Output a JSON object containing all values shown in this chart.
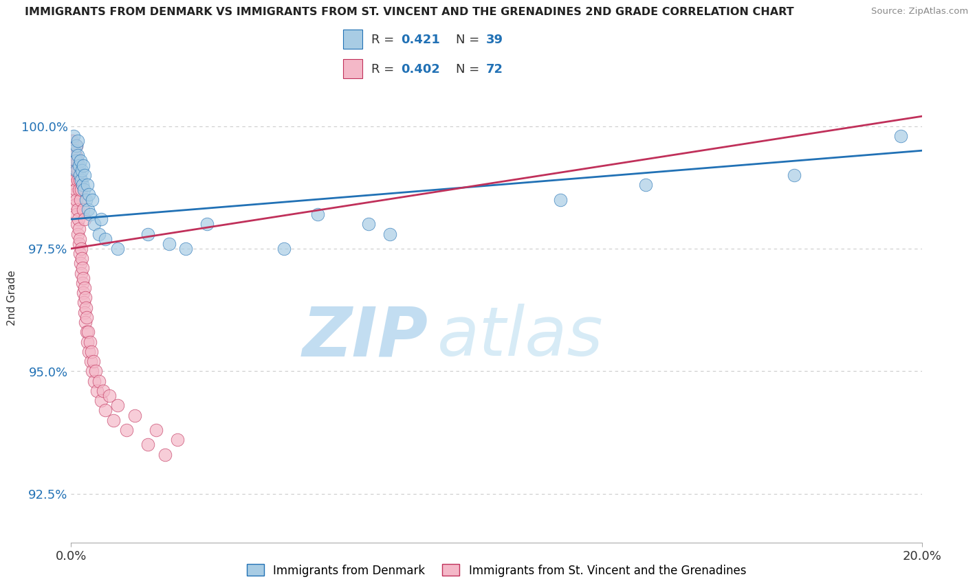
{
  "title": "IMMIGRANTS FROM DENMARK VS IMMIGRANTS FROM ST. VINCENT AND THE GRENADINES 2ND GRADE CORRELATION CHART",
  "source": "Source: ZipAtlas.com",
  "ylabel": "2nd Grade",
  "xlim": [
    0.0,
    20.0
  ],
  "ylim": [
    91.5,
    101.5
  ],
  "yticks": [
    92.5,
    95.0,
    97.5,
    100.0
  ],
  "ytick_labels": [
    "92.5%",
    "95.0%",
    "97.5%",
    "100.0%"
  ],
  "xticks": [
    0.0,
    20.0
  ],
  "xtick_labels": [
    "0.0%",
    "20.0%"
  ],
  "color_denmark": "#a8cce4",
  "color_stvincent": "#f4b8c8",
  "color_line_denmark": "#2171b5",
  "color_line_stvincent": "#c0305a",
  "label_denmark": "Immigrants from Denmark",
  "label_stvincent": "Immigrants from St. Vincent and the Grenadines",
  "watermark_zip": "ZIP",
  "watermark_atlas": "atlas",
  "grid_color": "#cccccc",
  "background_color": "#ffffff",
  "denmark_x": [
    0.05,
    0.08,
    0.1,
    0.12,
    0.13,
    0.15,
    0.16,
    0.18,
    0.2,
    0.22,
    0.24,
    0.25,
    0.27,
    0.28,
    0.3,
    0.32,
    0.35,
    0.38,
    0.4,
    0.42,
    0.45,
    0.5,
    0.55,
    0.65,
    0.7,
    0.8,
    1.1,
    1.8,
    2.3,
    2.7,
    3.2,
    5.0,
    5.8,
    7.0,
    7.5,
    11.5,
    13.5,
    17.0,
    19.5
  ],
  "denmark_y": [
    99.8,
    99.5,
    99.3,
    99.6,
    99.1,
    99.4,
    99.7,
    99.2,
    99.0,
    99.3,
    98.9,
    99.1,
    98.8,
    99.2,
    98.7,
    99.0,
    98.5,
    98.8,
    98.3,
    98.6,
    98.2,
    98.5,
    98.0,
    97.8,
    98.1,
    97.7,
    97.5,
    97.8,
    97.6,
    97.5,
    98.0,
    97.5,
    98.2,
    98.0,
    97.8,
    98.5,
    98.8,
    99.0,
    99.8
  ],
  "stvincent_x": [
    0.02,
    0.03,
    0.04,
    0.05,
    0.06,
    0.07,
    0.08,
    0.09,
    0.1,
    0.11,
    0.12,
    0.13,
    0.14,
    0.15,
    0.16,
    0.17,
    0.18,
    0.19,
    0.2,
    0.21,
    0.22,
    0.23,
    0.24,
    0.25,
    0.26,
    0.27,
    0.28,
    0.29,
    0.3,
    0.31,
    0.32,
    0.33,
    0.34,
    0.35,
    0.36,
    0.37,
    0.38,
    0.4,
    0.42,
    0.44,
    0.46,
    0.48,
    0.5,
    0.52,
    0.55,
    0.58,
    0.6,
    0.65,
    0.7,
    0.75,
    0.8,
    0.9,
    1.0,
    1.1,
    1.3,
    1.5,
    1.8,
    2.0,
    2.2,
    2.5,
    0.08,
    0.1,
    0.12,
    0.14,
    0.15,
    0.16,
    0.18,
    0.2,
    0.22,
    0.24,
    0.28,
    0.32
  ],
  "stvincent_y": [
    99.5,
    99.7,
    99.3,
    99.0,
    98.8,
    99.1,
    98.6,
    98.9,
    98.4,
    98.7,
    98.2,
    98.5,
    98.0,
    98.3,
    97.8,
    98.1,
    97.6,
    97.9,
    97.4,
    97.7,
    97.2,
    97.5,
    97.0,
    97.3,
    96.8,
    97.1,
    96.6,
    96.9,
    96.4,
    96.7,
    96.2,
    96.5,
    96.0,
    96.3,
    95.8,
    96.1,
    95.6,
    95.8,
    95.4,
    95.6,
    95.2,
    95.4,
    95.0,
    95.2,
    94.8,
    95.0,
    94.6,
    94.8,
    94.4,
    94.6,
    94.2,
    94.5,
    94.0,
    94.3,
    93.8,
    94.1,
    93.5,
    93.8,
    93.3,
    93.6,
    99.2,
    99.4,
    99.6,
    99.3,
    98.9,
    99.1,
    98.7,
    98.9,
    98.5,
    98.7,
    98.3,
    98.1
  ]
}
